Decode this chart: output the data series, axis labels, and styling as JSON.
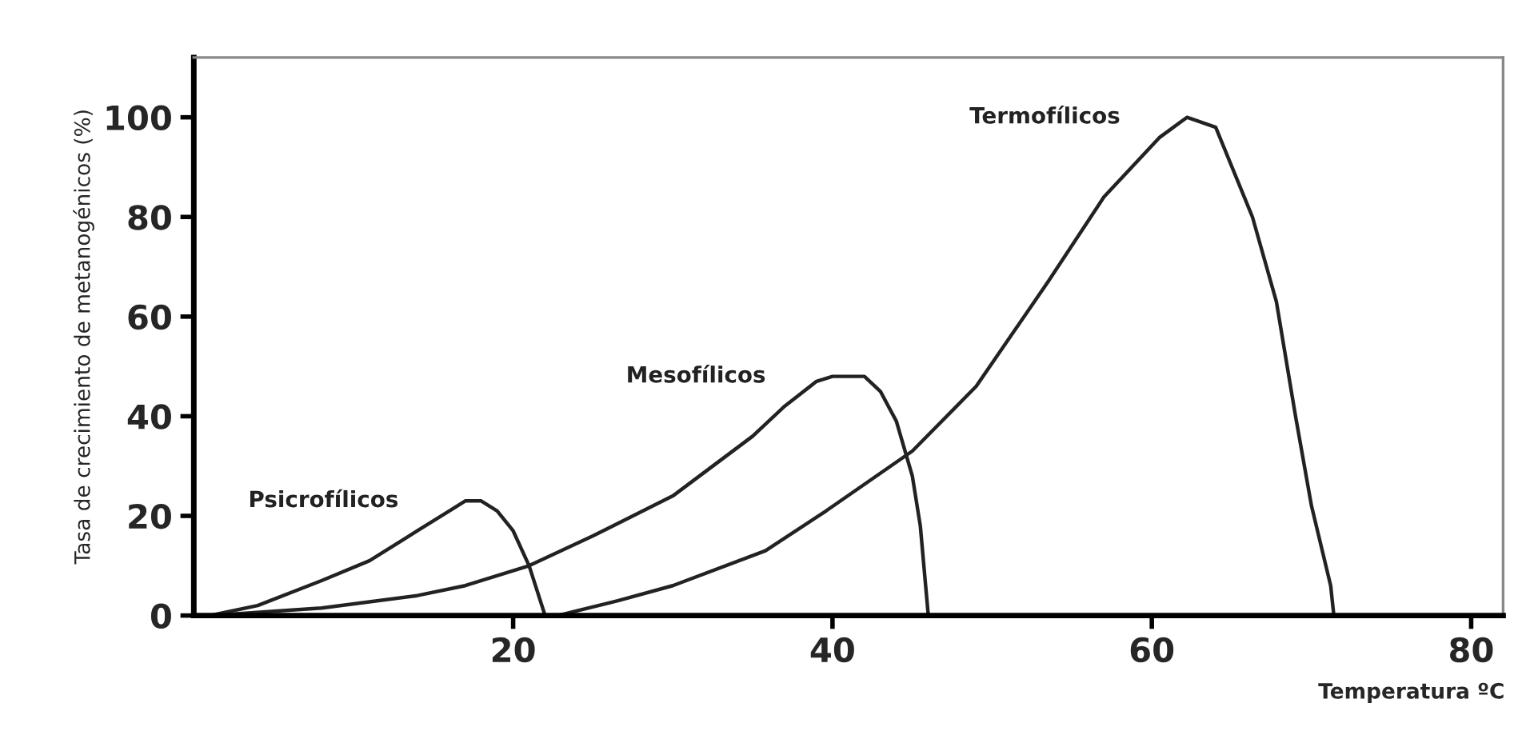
{
  "chart_data": {
    "type": "line",
    "xlabel": "Temperatura ºC",
    "ylabel": "Tasa de crecimiento de metanogénicos (%)",
    "xlim": [
      0,
      82
    ],
    "ylim": [
      0,
      112
    ],
    "xticks": [
      20,
      40,
      60,
      80
    ],
    "yticks": [
      0,
      20,
      40,
      60,
      80,
      100
    ],
    "grid": false,
    "legend": false,
    "marker": "none",
    "line_style": "solid",
    "series": [
      {
        "name": "Psicrofílicos",
        "color": "#222222",
        "x": [
          1,
          4,
          8,
          11,
          14,
          16,
          17,
          18,
          19,
          20,
          21,
          22
        ],
        "values": [
          0,
          2,
          7,
          11,
          17,
          21,
          23,
          23,
          21,
          17,
          10,
          0
        ]
      },
      {
        "name": "Mesofílicos",
        "color": "#222222",
        "x": [
          1,
          8,
          14,
          17,
          21,
          25,
          30,
          35,
          37,
          39,
          40,
          42,
          43,
          44,
          45,
          45.5,
          46
        ],
        "values": [
          0,
          1.5,
          4,
          6,
          10,
          16,
          24,
          36,
          42,
          47,
          48,
          48,
          45,
          39,
          28,
          18,
          0
        ]
      },
      {
        "name": "Termofílicos",
        "color": "#222222",
        "x": [
          22.8,
          26.6,
          30,
          35.8,
          39.6,
          45,
          49,
          53.5,
          57,
          60.5,
          62.2,
          64,
          66.3,
          67.8,
          69,
          70,
          71.2,
          71.4
        ],
        "values": [
          0,
          3,
          6,
          13,
          21,
          33,
          46,
          67,
          84,
          96,
          100,
          98,
          80,
          63,
          40,
          22,
          6,
          0
        ]
      }
    ]
  }
}
